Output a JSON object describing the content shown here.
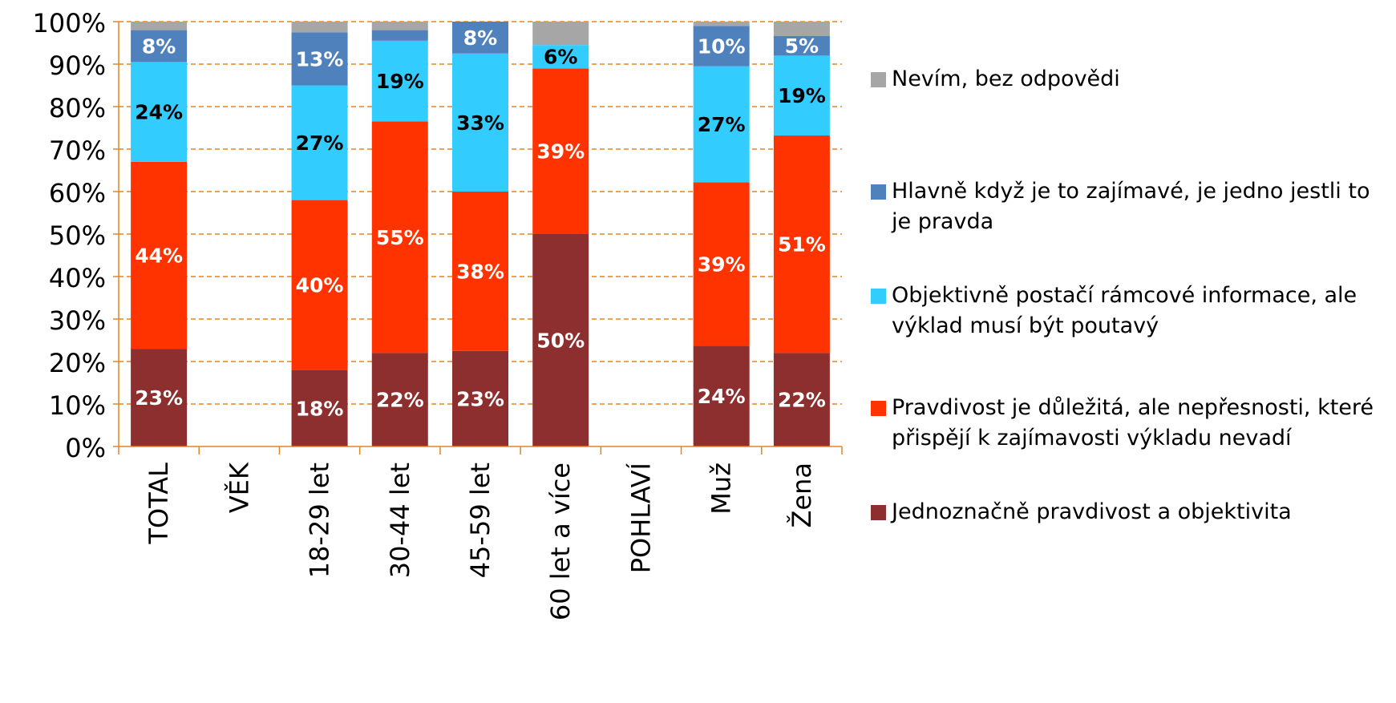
{
  "chart_data": {
    "type": "stacked_bar",
    "categories": [
      "TOTAL",
      "VĚK",
      "18-29 let",
      "30-44 let",
      "45-59 let",
      "60 let a více",
      "POHLAVÍ",
      "Muž",
      "Žena"
    ],
    "series": [
      {
        "name": "Jednoznačně pravdivost a objektivita",
        "color": "#8e2f2f",
        "label_color": "#ffffff",
        "values": [
          23,
          null,
          18,
          22,
          22.5,
          50,
          null,
          23.7,
          22
        ],
        "value_labels": [
          "23%",
          null,
          "18%",
          "22%",
          "23%",
          "50%",
          null,
          "24%",
          "22%"
        ]
      },
      {
        "name": "Pravdivost je důležitá, ale nepřesnosti, které přispějí k zajímavosti výkladu nevadí",
        "color": "#ff3300",
        "label_color": "#ffffff",
        "values": [
          44,
          null,
          40,
          54.5,
          37.5,
          39,
          null,
          38.5,
          51.2
        ],
        "value_labels": [
          "44%",
          null,
          "40%",
          "55%",
          "38%",
          "39%",
          null,
          "39%",
          "51%"
        ]
      },
      {
        "name": "Objektivně postačí rámcové informace, ale výklad musí být poutavý",
        "color": "#33ccff",
        "label_color": "#000000",
        "values": [
          23.5,
          null,
          27,
          19,
          32.5,
          5.5,
          null,
          27.3,
          18.8
        ],
        "value_labels": [
          "24%",
          null,
          "27%",
          "19%",
          "33%",
          "6%",
          null,
          "27%",
          "19%"
        ]
      },
      {
        "name": "Hlavně když je to zajímavé, je jedno jestli to je pravda",
        "color": "#4f81bd",
        "label_color": "#ffffff",
        "values": [
          7.5,
          null,
          12.5,
          2.5,
          7.5,
          0,
          null,
          9.5,
          4.6
        ],
        "value_labels": [
          "8%",
          null,
          "13%",
          null,
          "8%",
          null,
          null,
          "10%",
          "5%"
        ]
      },
      {
        "name": "Nevím, bez odpovědi",
        "color": "#a6a6a6",
        "values": [
          2,
          null,
          2.5,
          2,
          0,
          5.5,
          null,
          1,
          3.4
        ]
      }
    ],
    "ylim": [
      0,
      100
    ],
    "yticks": [
      {
        "value": 0,
        "label": "0%"
      },
      {
        "value": 10,
        "label": "10%"
      },
      {
        "value": 20,
        "label": "20%"
      },
      {
        "value": 30,
        "label": "30%"
      },
      {
        "value": 40,
        "label": "40%"
      },
      {
        "value": 50,
        "label": "50%"
      },
      {
        "value": 60,
        "label": "60%"
      },
      {
        "value": 70,
        "label": "70%"
      },
      {
        "value": 80,
        "label": "80%"
      },
      {
        "value": 90,
        "label": "90%"
      },
      {
        "value": 100,
        "label": "100%"
      }
    ],
    "grid": true,
    "legend": "right"
  }
}
